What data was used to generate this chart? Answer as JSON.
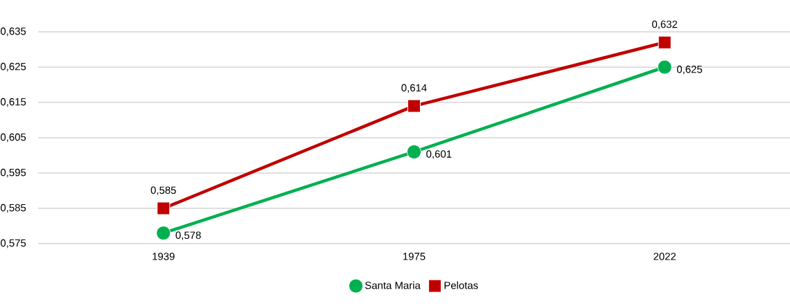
{
  "chart_data": {
    "type": "line",
    "categories": [
      "1939",
      "1975",
      "2022"
    ],
    "series": [
      {
        "name": "Santa Maria",
        "color": "#00b050",
        "marker": "circle",
        "values": [
          0.578,
          0.601,
          0.625
        ],
        "value_labels": [
          "0,578",
          "0,601",
          "0,625"
        ]
      },
      {
        "name": "Pelotas",
        "color": "#c00000",
        "marker": "square",
        "values": [
          0.585,
          0.614,
          0.632
        ],
        "value_labels": [
          "0,585",
          "0,614",
          "0,632"
        ]
      }
    ],
    "ylim": [
      0.575,
      0.635
    ],
    "yticks": [
      {
        "value": 0.575,
        "label": "0,575"
      },
      {
        "value": 0.585,
        "label": "0,585"
      },
      {
        "value": 0.595,
        "label": "0,595"
      },
      {
        "value": 0.605,
        "label": "0,605"
      },
      {
        "value": 0.615,
        "label": "0,615"
      },
      {
        "value": 0.625,
        "label": "0,625"
      },
      {
        "value": 0.635,
        "label": "0,635"
      }
    ],
    "grid": "y",
    "legend": "bottom",
    "line_style": "solid"
  }
}
